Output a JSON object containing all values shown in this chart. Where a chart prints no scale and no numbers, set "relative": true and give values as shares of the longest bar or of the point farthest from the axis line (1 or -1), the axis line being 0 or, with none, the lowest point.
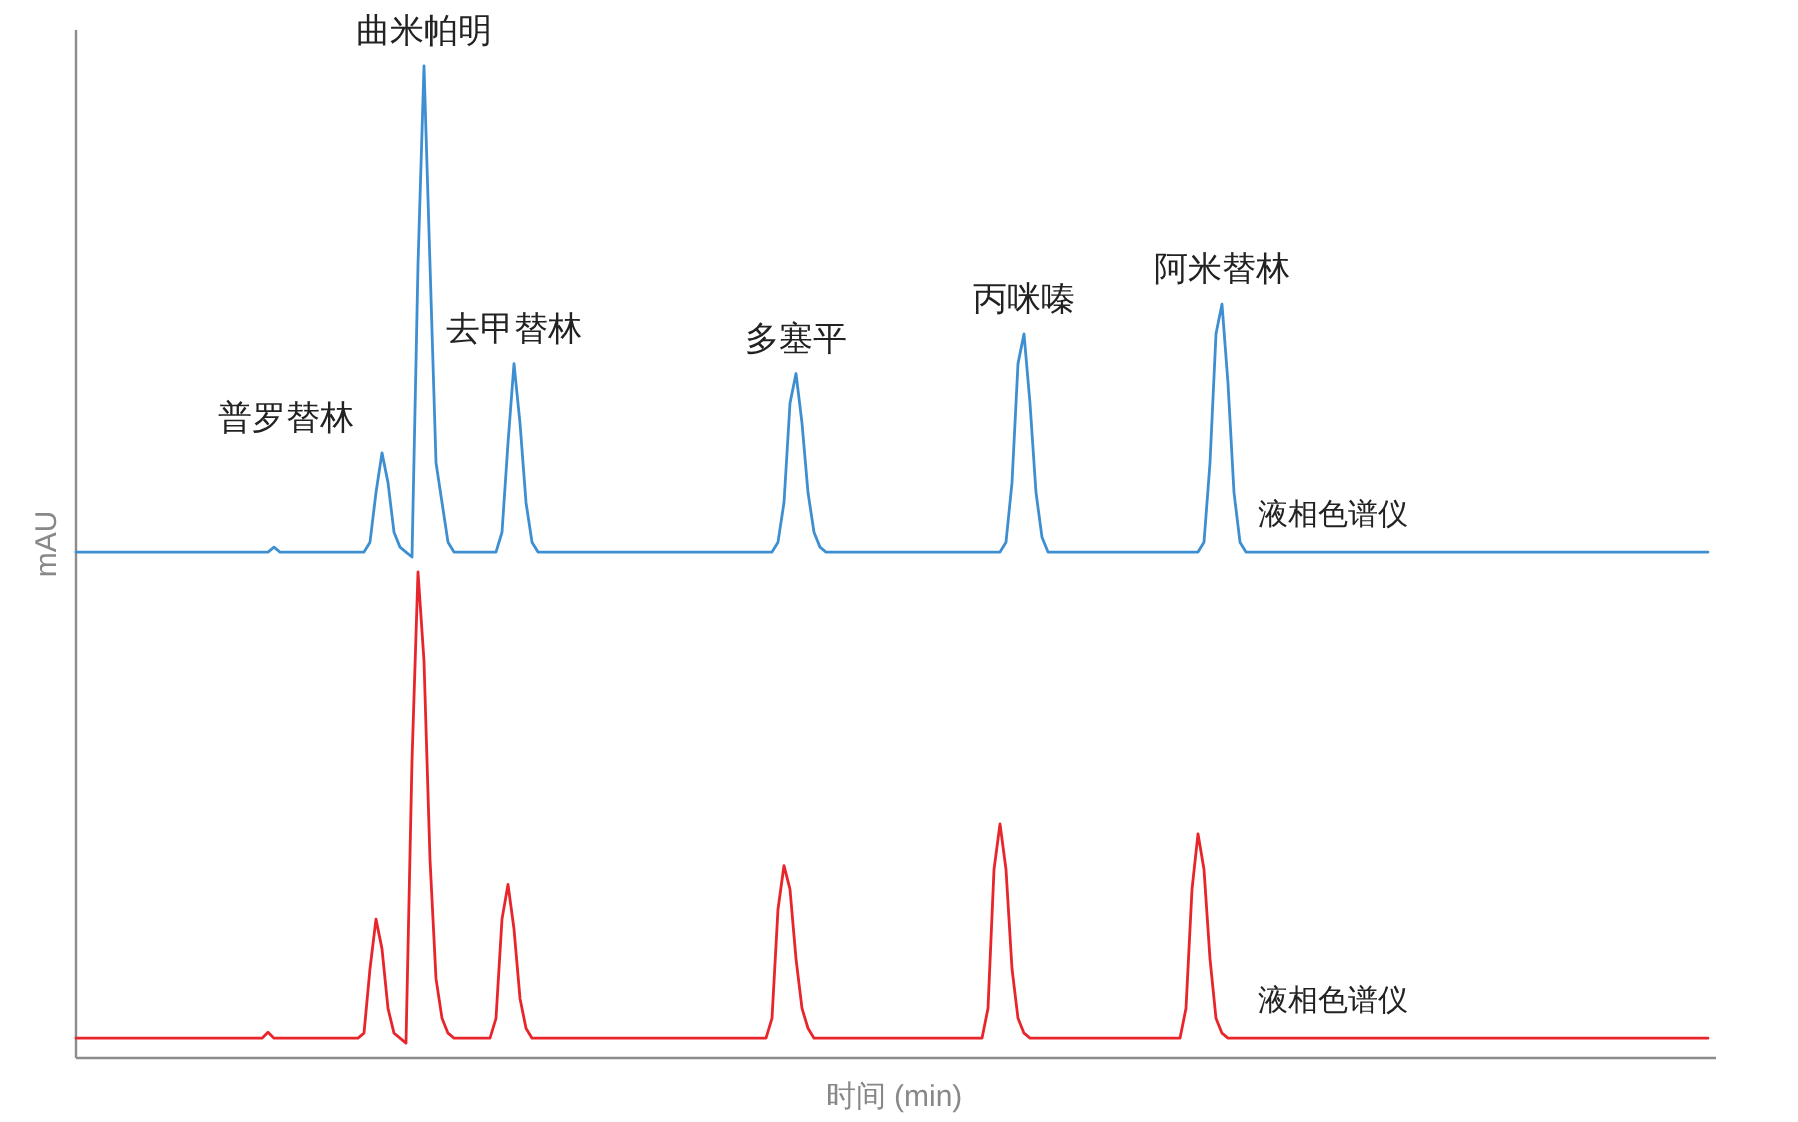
{
  "chart_data": {
    "type": "line",
    "relative": true,
    "xlabel": "时间 (min)",
    "ylabel": "mAU",
    "annotations": [
      "普罗替林",
      "曲米帕明",
      "去甲替林",
      "多塞平",
      "丙咪嗪",
      "阿米替林"
    ],
    "categories": [
      null,
      null,
      null,
      null,
      null,
      null,
      null,
      null,
      null,
      null,
      null,
      null,
      null,
      null,
      null,
      null,
      null,
      null,
      null,
      null,
      null,
      null,
      null,
      null,
      null,
      null,
      null,
      null,
      null,
      null,
      null,
      null,
      null,
      null,
      null,
      null,
      null,
      null,
      null,
      null,
      null,
      null,
      null,
      null,
      null,
      null,
      null,
      null,
      null,
      null,
      null,
      null,
      null,
      null,
      null,
      null,
      null,
      null,
      null,
      null,
      null,
      null,
      null,
      null,
      null,
      null,
      null,
      null,
      null,
      null,
      null,
      null,
      null,
      null,
      null,
      null,
      null,
      null,
      null,
      null,
      null,
      null,
      null,
      null,
      null,
      null,
      null,
      null,
      null,
      null,
      null,
      null,
      null,
      null,
      null,
      null,
      null,
      null,
      null,
      null,
      null,
      null,
      null,
      null,
      null,
      null,
      null,
      null,
      null,
      null,
      null,
      null,
      null,
      null,
      null,
      null,
      null,
      null,
      null,
      null,
      null,
      null,
      null,
      null,
      null,
      null,
      null,
      null,
      null,
      null,
      null,
      null,
      null,
      null,
      null,
      null,
      null,
      null,
      null,
      null,
      null,
      null,
      null,
      null,
      null,
      null,
      null,
      null,
      null,
      null,
      null,
      null,
      null,
      null,
      null,
      null,
      null,
      null,
      null,
      null,
      null,
      null,
      null,
      null,
      null,
      null,
      null,
      null,
      null,
      null,
      null,
      null,
      null,
      null,
      null,
      null,
      null,
      null,
      null,
      null,
      null,
      null,
      null,
      null,
      null,
      null,
      null,
      null,
      null,
      null,
      null,
      null,
      null,
      null,
      null,
      null,
      null,
      null,
      null,
      null,
      null,
      null,
      null,
      null,
      null,
      null,
      null,
      null,
      null,
      null,
      null,
      null,
      null,
      null,
      null,
      null,
      null,
      null,
      null,
      null,
      null,
      null,
      null,
      null,
      null,
      null,
      null,
      null,
      null,
      null,
      null,
      null,
      null,
      null,
      null,
      null,
      null,
      null,
      null,
      null,
      null,
      null,
      null,
      null,
      null,
      null,
      null,
      null,
      null,
      null,
      null,
      null,
      null,
      null,
      null,
      null,
      null,
      null,
      null,
      null,
      null,
      null,
      null,
      null,
      null,
      null,
      null,
      null,
      null,
      null,
      null,
      null,
      null
    ],
    "series": [
      {
        "name": "液相色谱仪",
        "color": "#3d8fd1",
        "values": [
          0.51,
          0.51,
          0.51,
          0.51,
          0.51,
          0.51,
          0.51,
          0.51,
          0.51,
          0.51,
          0.51,
          0.51,
          0.51,
          0.51,
          0.51,
          0.51,
          0.51,
          0.51,
          0.51,
          0.51,
          0.51,
          0.51,
          0.51,
          0.51,
          0.51,
          0.51,
          0.51,
          0.51,
          0.51,
          0.51,
          0.51,
          0.51,
          0.51,
          0.515,
          0.51,
          0.51,
          0.51,
          0.51,
          0.51,
          0.51,
          0.51,
          0.51,
          0.51,
          0.51,
          0.51,
          0.51,
          0.51,
          0.51,
          0.51,
          0.52,
          0.57,
          0.61,
          0.58,
          0.53,
          0.515,
          0.51,
          0.505,
          0.8,
          1,
          0.8,
          0.6,
          0.56,
          0.52,
          0.51,
          0.51,
          0.51,
          0.51,
          0.51,
          0.51,
          0.51,
          0.51,
          0.53,
          0.62,
          0.7,
          0.64,
          0.56,
          0.52,
          0.51,
          0.51,
          0.51,
          0.51,
          0.51,
          0.51,
          0.51,
          0.51,
          0.51,
          0.51,
          0.51,
          0.51,
          0.51,
          0.51,
          0.51,
          0.51,
          0.51,
          0.51,
          0.51,
          0.51,
          0.51,
          0.51,
          0.51,
          0.51,
          0.51,
          0.51,
          0.51,
          0.51,
          0.51,
          0.51,
          0.51,
          0.51,
          0.51,
          0.51,
          0.51,
          0.51,
          0.51,
          0.51,
          0.51,
          0.51,
          0.52,
          0.56,
          0.66,
          0.69,
          0.64,
          0.57,
          0.53,
          0.515,
          0.51,
          0.51,
          0.51,
          0.51,
          0.51,
          0.51,
          0.51,
          0.51,
          0.51,
          0.51,
          0.51,
          0.51,
          0.51,
          0.51,
          0.51,
          0.51,
          0.51,
          0.51,
          0.51,
          0.51,
          0.51,
          0.51,
          0.51,
          0.51,
          0.51,
          0.51,
          0.51,
          0.51,
          0.51,
          0.51,
          0.52,
          0.58,
          0.7,
          0.73,
          0.66,
          0.57,
          0.525,
          0.51,
          0.51,
          0.51,
          0.51,
          0.51,
          0.51,
          0.51,
          0.51,
          0.51,
          0.51,
          0.51,
          0.51,
          0.51,
          0.51,
          0.51,
          0.51,
          0.51,
          0.51,
          0.51,
          0.51,
          0.51,
          0.51,
          0.51,
          0.51,
          0.51,
          0.51,
          0.52,
          0.6,
          0.73,
          0.76,
          0.68,
          0.57,
          0.52,
          0.51,
          0.51,
          0.51,
          0.51,
          0.51,
          0.51,
          0.51,
          0.51,
          0.51,
          0.51,
          0.51,
          0.51,
          0.51,
          0.51,
          0.51,
          0.51,
          0.51,
          0.51,
          0.51,
          0.51,
          0.51,
          0.51,
          0.51,
          0.51,
          0.51,
          0.51,
          0.51,
          0.51,
          0.51,
          0.51,
          0.51,
          0.51,
          0.51,
          0.51,
          0.51,
          0.51,
          0.51,
          0.51,
          0.51,
          0.51,
          0.51,
          0.51,
          0.51,
          0.51,
          0.51,
          0.51,
          0.51,
          0.51,
          0.51,
          0.51,
          0.51,
          0.51,
          0.51,
          0.51,
          0.51,
          0.51,
          0.51,
          0.51,
          0.51,
          0.51,
          0.51,
          0.51,
          0.51,
          0.51,
          0.51,
          0.51,
          0.51,
          0.51,
          0.51,
          0.51,
          0.51,
          0.51,
          0.51,
          0.51,
          0.51,
          0.51,
          0.51,
          0.51
        ]
      },
      {
        "name": "液相色谱仪",
        "color": "#e8252b",
        "values": [
          0.02,
          0.02,
          0.02,
          0.02,
          0.02,
          0.02,
          0.02,
          0.02,
          0.02,
          0.02,
          0.02,
          0.02,
          0.02,
          0.02,
          0.02,
          0.02,
          0.02,
          0.02,
          0.02,
          0.02,
          0.02,
          0.02,
          0.02,
          0.02,
          0.02,
          0.02,
          0.02,
          0.02,
          0.02,
          0.02,
          0.02,
          0.02,
          0.026,
          0.02,
          0.02,
          0.02,
          0.02,
          0.02,
          0.02,
          0.02,
          0.02,
          0.02,
          0.02,
          0.02,
          0.02,
          0.02,
          0.02,
          0.02,
          0.025,
          0.09,
          0.14,
          0.11,
          0.05,
          0.025,
          0.02,
          0.015,
          0.3,
          0.49,
          0.4,
          0.2,
          0.08,
          0.04,
          0.025,
          0.02,
          0.02,
          0.02,
          0.02,
          0.02,
          0.02,
          0.02,
          0.04,
          0.14,
          0.175,
          0.13,
          0.06,
          0.03,
          0.02,
          0.02,
          0.02,
          0.02,
          0.02,
          0.02,
          0.02,
          0.02,
          0.02,
          0.02,
          0.02,
          0.02,
          0.02,
          0.02,
          0.02,
          0.02,
          0.02,
          0.02,
          0.02,
          0.02,
          0.02,
          0.02,
          0.02,
          0.02,
          0.02,
          0.02,
          0.02,
          0.02,
          0.02,
          0.02,
          0.02,
          0.02,
          0.02,
          0.02,
          0.02,
          0.02,
          0.02,
          0.02,
          0.02,
          0.02,
          0.04,
          0.15,
          0.194,
          0.17,
          0.1,
          0.05,
          0.03,
          0.02,
          0.02,
          0.02,
          0.02,
          0.02,
          0.02,
          0.02,
          0.02,
          0.02,
          0.02,
          0.02,
          0.02,
          0.02,
          0.02,
          0.02,
          0.02,
          0.02,
          0.02,
          0.02,
          0.02,
          0.02,
          0.02,
          0.02,
          0.02,
          0.02,
          0.02,
          0.02,
          0.02,
          0.02,
          0.05,
          0.19,
          0.236,
          0.19,
          0.09,
          0.04,
          0.025,
          0.02,
          0.02,
          0.02,
          0.02,
          0.02,
          0.02,
          0.02,
          0.02,
          0.02,
          0.02,
          0.02,
          0.02,
          0.02,
          0.02,
          0.02,
          0.02,
          0.02,
          0.02,
          0.02,
          0.02,
          0.02,
          0.02,
          0.02,
          0.02,
          0.02,
          0.02,
          0.05,
          0.17,
          0.226,
          0.19,
          0.1,
          0.04,
          0.025,
          0.02,
          0.02,
          0.02,
          0.02,
          0.02,
          0.02,
          0.02,
          0.02,
          0.02,
          0.02,
          0.02,
          0.02,
          0.02,
          0.02,
          0.02,
          0.02,
          0.02,
          0.02,
          0.02,
          0.02,
          0.02,
          0.02,
          0.02,
          0.02,
          0.02,
          0.02,
          0.02,
          0.02,
          0.02,
          0.02,
          0.02,
          0.02,
          0.02,
          0.02,
          0.02,
          0.02,
          0.02,
          0.02,
          0.02,
          0.02,
          0.02,
          0.02,
          0.02,
          0.02,
          0.02,
          0.02,
          0.02,
          0.02,
          0.02,
          0.02,
          0.02,
          0.02,
          0.02,
          0.02,
          0.02,
          0.02,
          0.02,
          0.02,
          0.02,
          0.02,
          0.02,
          0.02,
          0.02,
          0.02,
          0.02,
          0.02,
          0.02,
          0.02,
          0.02,
          0.02,
          0.02,
          0.02,
          0.02,
          0.02,
          0.02,
          0.02,
          0.02,
          0.02,
          0.02,
          0.02,
          0.02
        ]
      }
    ]
  }
}
